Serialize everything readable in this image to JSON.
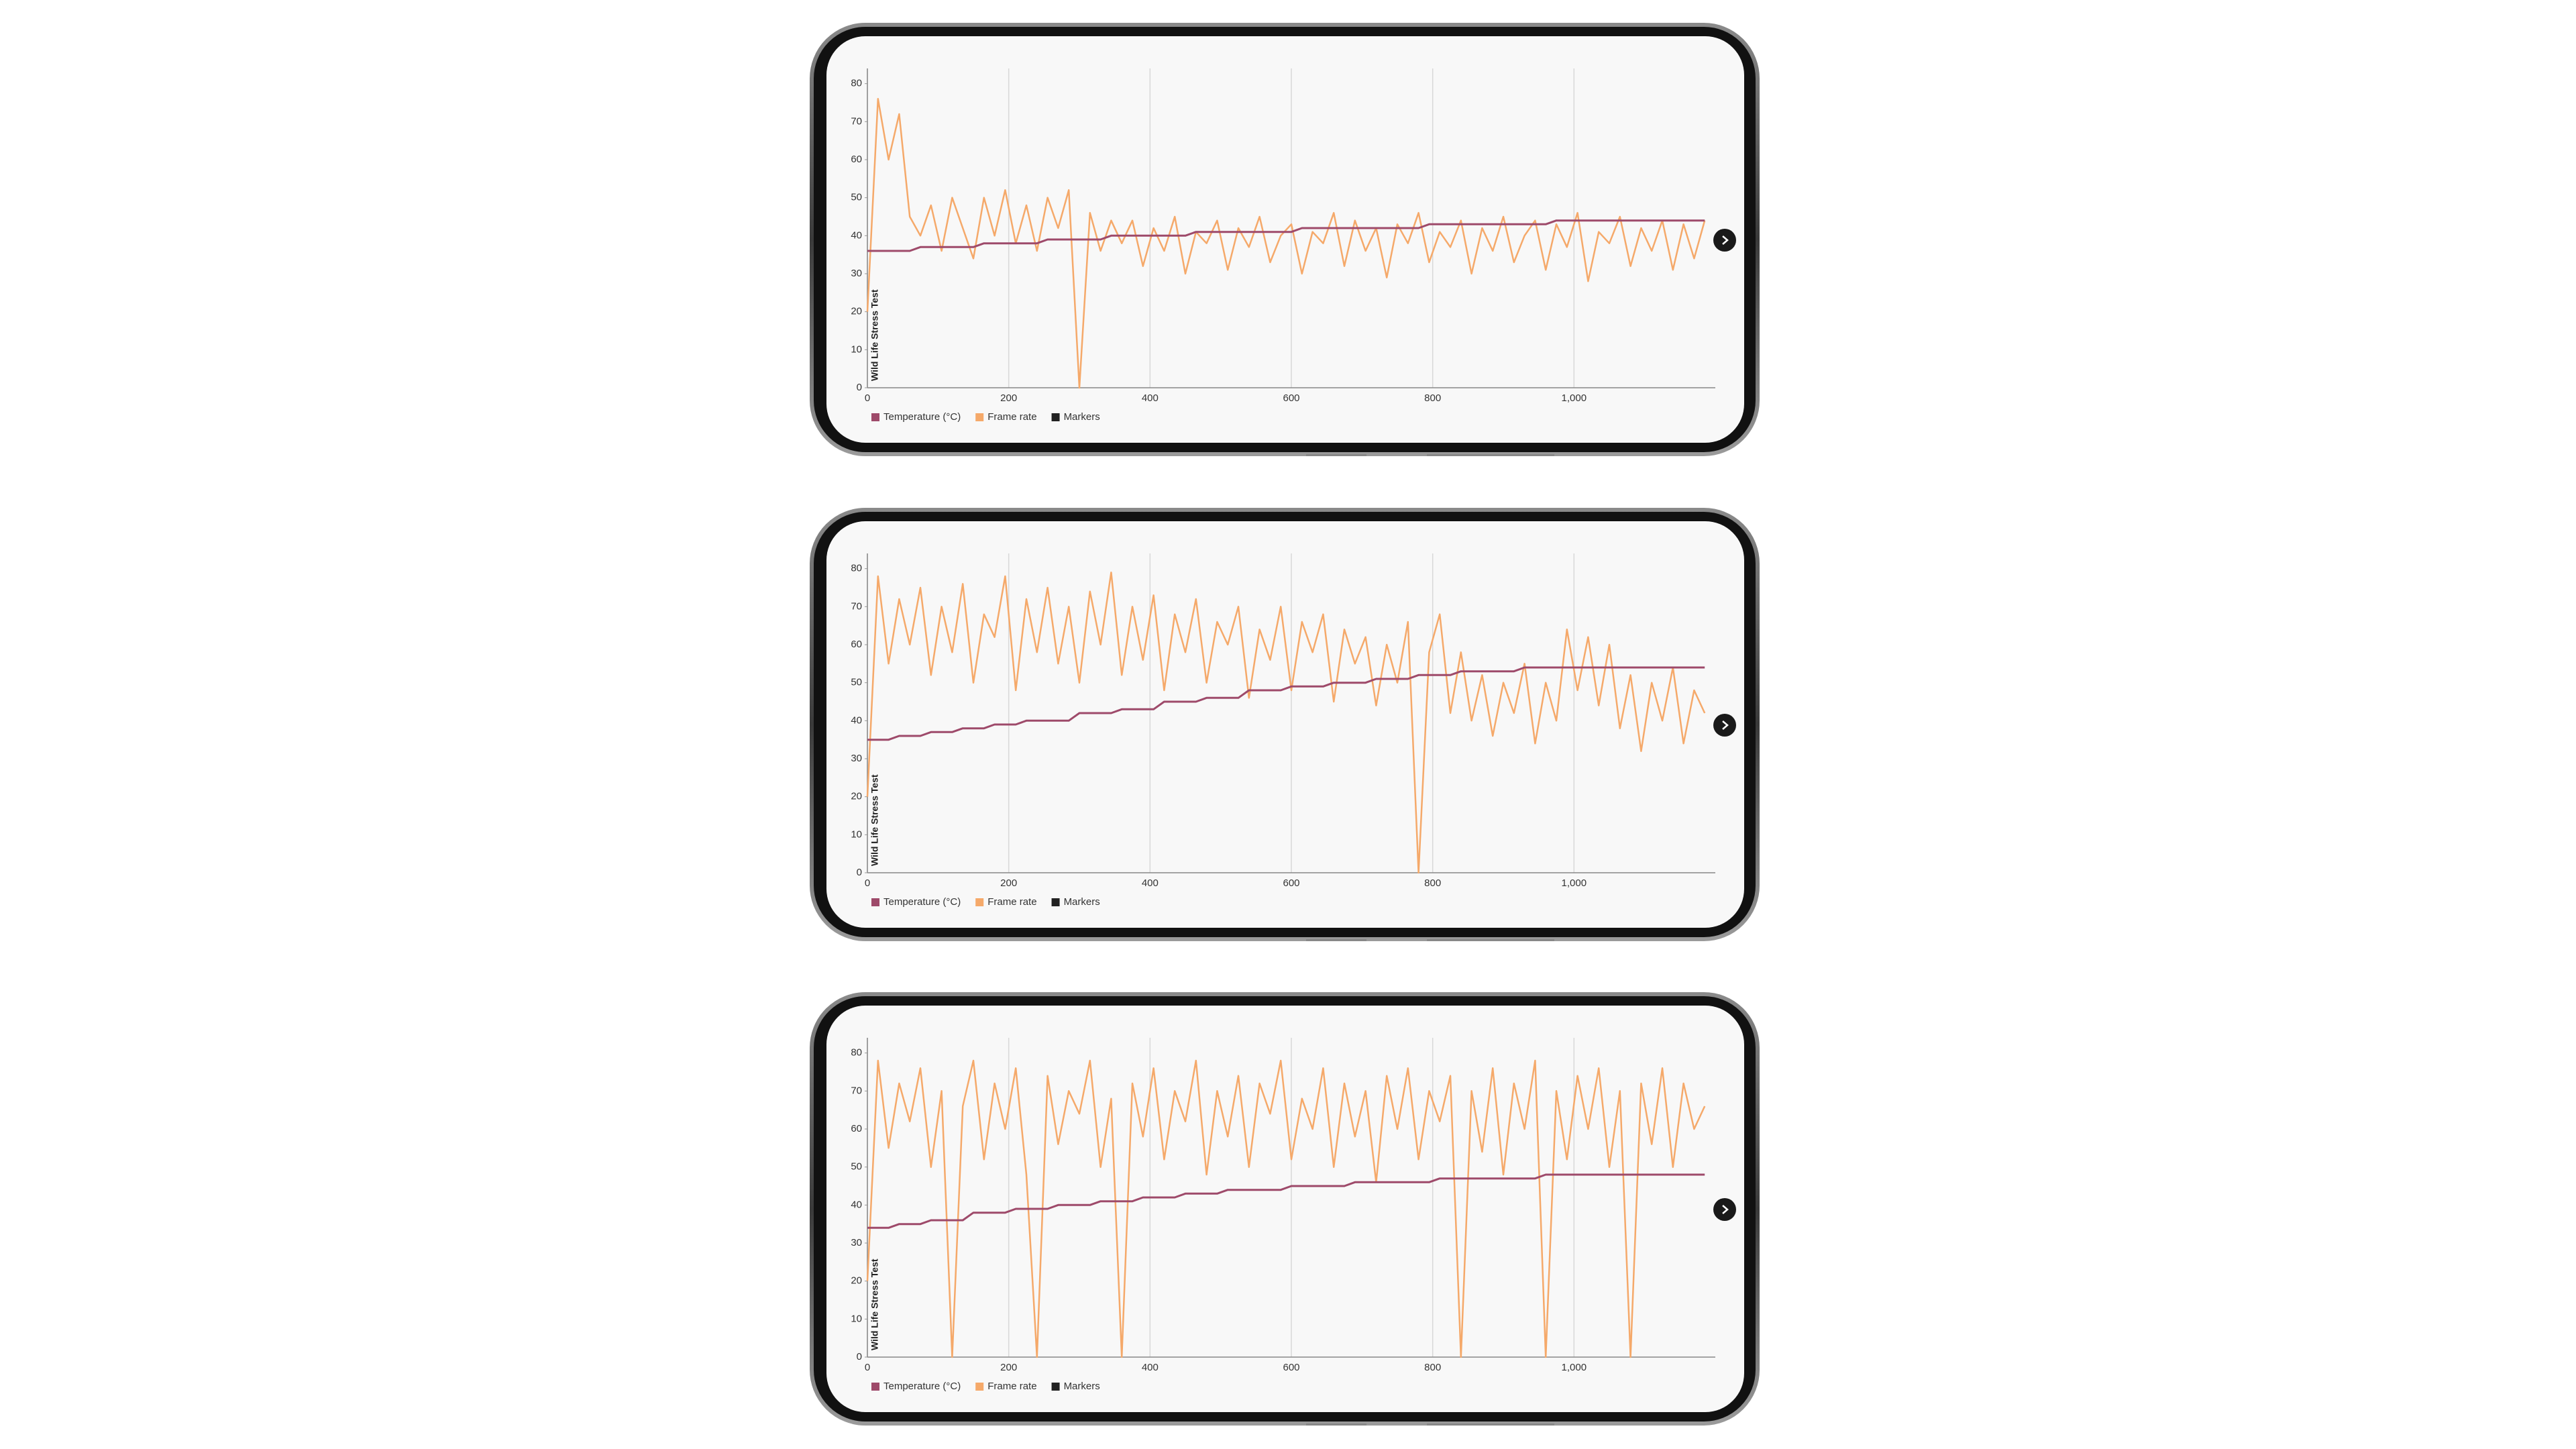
{
  "chart_data": [
    {
      "type": "line",
      "ylabel": "Wild Life Stress Test",
      "x": [
        0,
        15,
        30,
        45,
        60,
        75,
        90,
        105,
        120,
        135,
        150,
        165,
        180,
        195,
        210,
        225,
        240,
        255,
        270,
        285,
        300,
        315,
        330,
        345,
        360,
        375,
        390,
        405,
        420,
        435,
        450,
        465,
        480,
        495,
        510,
        525,
        540,
        555,
        570,
        585,
        600,
        615,
        630,
        645,
        660,
        675,
        690,
        705,
        720,
        735,
        750,
        765,
        780,
        795,
        810,
        825,
        840,
        855,
        870,
        885,
        900,
        915,
        930,
        945,
        960,
        975,
        990,
        1005,
        1020,
        1035,
        1050,
        1065,
        1080,
        1095,
        1110,
        1125,
        1140,
        1155,
        1170,
        1185
      ],
      "series": [
        {
          "name": "Temperature (°C)",
          "color": "#9e4a6a",
          "values": [
            36,
            36,
            36,
            36,
            36,
            37,
            37,
            37,
            37,
            37,
            37,
            38,
            38,
            38,
            38,
            38,
            38,
            39,
            39,
            39,
            39,
            39,
            39,
            40,
            40,
            40,
            40,
            40,
            40,
            40,
            40,
            41,
            41,
            41,
            41,
            41,
            41,
            41,
            41,
            41,
            41,
            42,
            42,
            42,
            42,
            42,
            42,
            42,
            42,
            42,
            42,
            42,
            42,
            43,
            43,
            43,
            43,
            43,
            43,
            43,
            43,
            43,
            43,
            43,
            43,
            44,
            44,
            44,
            44,
            44,
            44,
            44,
            44,
            44,
            44,
            44,
            44,
            44,
            44,
            44
          ]
        },
        {
          "name": "Frame rate",
          "color": "#f5a96a",
          "values": [
            20,
            76,
            60,
            72,
            45,
            40,
            48,
            36,
            50,
            42,
            34,
            50,
            40,
            52,
            38,
            48,
            36,
            50,
            42,
            52,
            0,
            46,
            36,
            44,
            38,
            44,
            32,
            42,
            36,
            45,
            30,
            41,
            38,
            44,
            31,
            42,
            37,
            45,
            33,
            40,
            43,
            30,
            41,
            38,
            46,
            32,
            44,
            36,
            42,
            29,
            43,
            38,
            46,
            33,
            41,
            37,
            44,
            30,
            42,
            36,
            45,
            33,
            40,
            44,
            31,
            43,
            37,
            46,
            28,
            41,
            38,
            45,
            32,
            42,
            36,
            44,
            31,
            43,
            34,
            44
          ]
        }
      ],
      "markers": {
        "name": "Markers",
        "color": "#222222"
      },
      "xlim": [
        0,
        1200
      ],
      "ylim": [
        0,
        84
      ],
      "xticks": [
        0,
        200,
        400,
        600,
        800,
        {
          "value": 1000,
          "label": "1,000"
        }
      ],
      "yticks": [
        0,
        10,
        20,
        30,
        40,
        50,
        60,
        70,
        80
      ],
      "grid": "x"
    },
    {
      "type": "line",
      "ylabel": "Wild Life Stress Test",
      "x": [
        0,
        15,
        30,
        45,
        60,
        75,
        90,
        105,
        120,
        135,
        150,
        165,
        180,
        195,
        210,
        225,
        240,
        255,
        270,
        285,
        300,
        315,
        330,
        345,
        360,
        375,
        390,
        405,
        420,
        435,
        450,
        465,
        480,
        495,
        510,
        525,
        540,
        555,
        570,
        585,
        600,
        615,
        630,
        645,
        660,
        675,
        690,
        705,
        720,
        735,
        750,
        765,
        780,
        795,
        810,
        825,
        840,
        855,
        870,
        885,
        900,
        915,
        930,
        945,
        960,
        975,
        990,
        1005,
        1020,
        1035,
        1050,
        1065,
        1080,
        1095,
        1110,
        1125,
        1140,
        1155,
        1170,
        1185
      ],
      "series": [
        {
          "name": "Temperature (°C)",
          "color": "#9e4a6a",
          "values": [
            35,
            35,
            35,
            36,
            36,
            36,
            37,
            37,
            37,
            38,
            38,
            38,
            39,
            39,
            39,
            40,
            40,
            40,
            40,
            40,
            42,
            42,
            42,
            42,
            43,
            43,
            43,
            43,
            45,
            45,
            45,
            45,
            46,
            46,
            46,
            46,
            48,
            48,
            48,
            48,
            49,
            49,
            49,
            49,
            50,
            50,
            50,
            50,
            51,
            51,
            51,
            51,
            52,
            52,
            52,
            52,
            53,
            53,
            53,
            53,
            53,
            53,
            54,
            54,
            54,
            54,
            54,
            54,
            54,
            54,
            54,
            54,
            54,
            54,
            54,
            54,
            54,
            54,
            54,
            54
          ]
        },
        {
          "name": "Frame rate",
          "color": "#f5a96a",
          "values": [
            20,
            78,
            55,
            72,
            60,
            75,
            52,
            70,
            58,
            76,
            50,
            68,
            62,
            78,
            48,
            72,
            58,
            75,
            55,
            70,
            50,
            74,
            60,
            79,
            52,
            70,
            56,
            73,
            48,
            68,
            58,
            72,
            50,
            66,
            60,
            70,
            46,
            64,
            56,
            70,
            48,
            66,
            58,
            68,
            45,
            64,
            55,
            62,
            44,
            60,
            50,
            66,
            0,
            58,
            68,
            42,
            58,
            40,
            52,
            36,
            50,
            42,
            55,
            34,
            50,
            40,
            64,
            48,
            62,
            44,
            60,
            38,
            52,
            32,
            50,
            40,
            54,
            34,
            48,
            42
          ]
        }
      ],
      "markers": {
        "name": "Markers",
        "color": "#222222"
      },
      "xlim": [
        0,
        1200
      ],
      "ylim": [
        0,
        84
      ],
      "xticks": [
        0,
        200,
        400,
        600,
        800,
        {
          "value": 1000,
          "label": "1,000"
        }
      ],
      "yticks": [
        0,
        10,
        20,
        30,
        40,
        50,
        60,
        70,
        80
      ],
      "grid": "x"
    },
    {
      "type": "line",
      "ylabel": "Wild Life Stress Test",
      "x": [
        0,
        15,
        30,
        45,
        60,
        75,
        90,
        105,
        120,
        135,
        150,
        165,
        180,
        195,
        210,
        225,
        240,
        255,
        270,
        285,
        300,
        315,
        330,
        345,
        360,
        375,
        390,
        405,
        420,
        435,
        450,
        465,
        480,
        495,
        510,
        525,
        540,
        555,
        570,
        585,
        600,
        615,
        630,
        645,
        660,
        675,
        690,
        705,
        720,
        735,
        750,
        765,
        780,
        795,
        810,
        825,
        840,
        855,
        870,
        885,
        900,
        915,
        930,
        945,
        960,
        975,
        990,
        1005,
        1020,
        1035,
        1050,
        1065,
        1080,
        1095,
        1110,
        1125,
        1140,
        1155,
        1170,
        1185
      ],
      "series": [
        {
          "name": "Temperature (°C)",
          "color": "#9e4a6a",
          "values": [
            34,
            34,
            34,
            35,
            35,
            35,
            36,
            36,
            36,
            36,
            38,
            38,
            38,
            38,
            39,
            39,
            39,
            39,
            40,
            40,
            40,
            40,
            41,
            41,
            41,
            41,
            42,
            42,
            42,
            42,
            43,
            43,
            43,
            43,
            44,
            44,
            44,
            44,
            44,
            44,
            45,
            45,
            45,
            45,
            45,
            45,
            46,
            46,
            46,
            46,
            46,
            46,
            46,
            46,
            47,
            47,
            47,
            47,
            47,
            47,
            47,
            47,
            47,
            47,
            48,
            48,
            48,
            48,
            48,
            48,
            48,
            48,
            48,
            48,
            48,
            48,
            48,
            48,
            48,
            48
          ]
        },
        {
          "name": "Frame rate",
          "color": "#f5a96a",
          "values": [
            20,
            78,
            55,
            72,
            62,
            76,
            50,
            70,
            0,
            66,
            78,
            52,
            72,
            60,
            76,
            48,
            0,
            74,
            56,
            70,
            64,
            78,
            50,
            68,
            0,
            72,
            58,
            76,
            52,
            70,
            62,
            78,
            48,
            70,
            58,
            74,
            50,
            72,
            64,
            78,
            52,
            68,
            60,
            76,
            50,
            72,
            58,
            70,
            46,
            74,
            60,
            76,
            52,
            70,
            62,
            74,
            0,
            70,
            54,
            76,
            48,
            72,
            60,
            78,
            0,
            70,
            52,
            74,
            60,
            76,
            50,
            70,
            0,
            72,
            56,
            76,
            50,
            72,
            60,
            66
          ]
        }
      ],
      "markers": {
        "name": "Markers",
        "color": "#222222"
      },
      "xlim": [
        0,
        1200
      ],
      "ylim": [
        0,
        84
      ],
      "xticks": [
        0,
        200,
        400,
        600,
        800,
        {
          "value": 1000,
          "label": "1,000"
        }
      ],
      "yticks": [
        0,
        10,
        20,
        30,
        40,
        50,
        60,
        70,
        80
      ],
      "grid": "x"
    }
  ]
}
